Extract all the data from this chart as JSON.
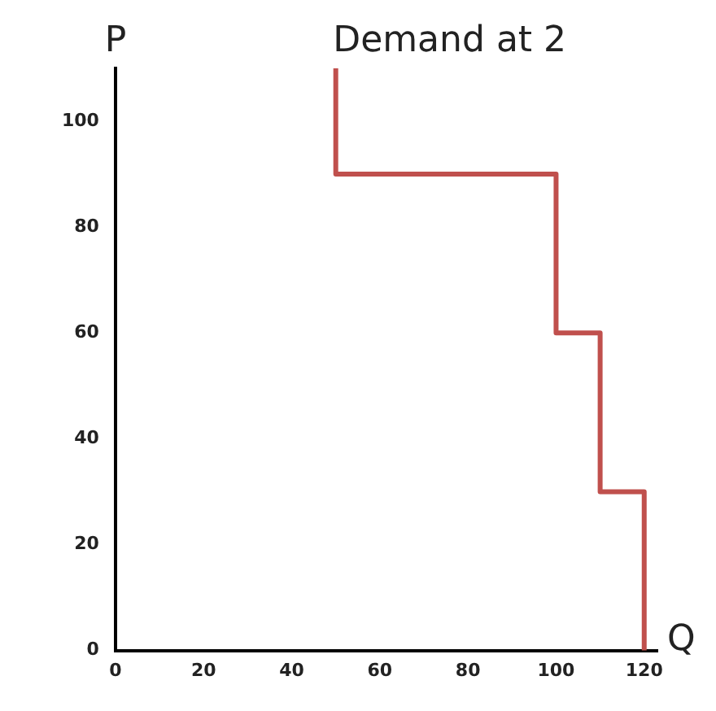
{
  "chart_data": {
    "type": "line",
    "title": "Demand at 2",
    "xlabel": "Q",
    "ylabel": "P",
    "x": [
      50,
      50,
      100,
      100,
      110,
      110,
      120,
      120
    ],
    "series": [
      {
        "color": "#c0504d",
        "values": [
          110,
          90,
          90,
          60,
          60,
          30,
          30,
          0
        ]
      }
    ],
    "xlim": [
      0,
      123
    ],
    "xticks": [
      0,
      20,
      40,
      60,
      80,
      100,
      120
    ],
    "ylim": [
      0,
      110
    ],
    "yticks": [
      0,
      20,
      40,
      60,
      80,
      100
    ],
    "grid": false,
    "legend": false,
    "marker": "none",
    "line_style": "solid"
  }
}
